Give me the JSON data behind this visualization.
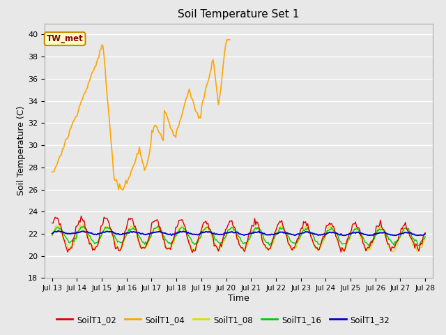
{
  "title": "Soil Temperature Set 1",
  "xlabel": "Time",
  "ylabel": "Soil Temperature (C)",
  "ylim": [
    18,
    41
  ],
  "yticks": [
    18,
    20,
    22,
    24,
    26,
    28,
    30,
    32,
    34,
    36,
    38,
    40
  ],
  "plot_bg_color": "#e8e8e8",
  "grid_color": "white",
  "series": {
    "SoilT1_02": {
      "color": "#dd0000",
      "lw": 1.0
    },
    "SoilT1_04": {
      "color": "#ffa500",
      "lw": 1.2
    },
    "SoilT1_08": {
      "color": "#dddd00",
      "lw": 1.0
    },
    "SoilT1_16": {
      "color": "#00cc00",
      "lw": 1.0
    },
    "SoilT1_32": {
      "color": "#0000cc",
      "lw": 1.4
    }
  },
  "legend_colors": {
    "SoilT1_02": "#dd0000",
    "SoilT1_04": "#ffa500",
    "SoilT1_08": "#dddd00",
    "SoilT1_16": "#00cc00",
    "SoilT1_32": "#0000cc"
  },
  "tw_met_box": {
    "text": "TW_met",
    "facecolor": "#ffffcc",
    "edgecolor": "#cc8800",
    "textcolor": "#880000"
  },
  "xticklabels": [
    "Jul 13",
    "Jul 14",
    "Jul 15",
    "Jul 16",
    "Jul 17",
    "Jul 18",
    "Jul 19",
    "Jul 20",
    "Jul 21",
    "Jul 22",
    "Jul 23",
    "Jul 24",
    "Jul 25",
    "Jul 26",
    "Jul 27",
    "Jul 28"
  ]
}
